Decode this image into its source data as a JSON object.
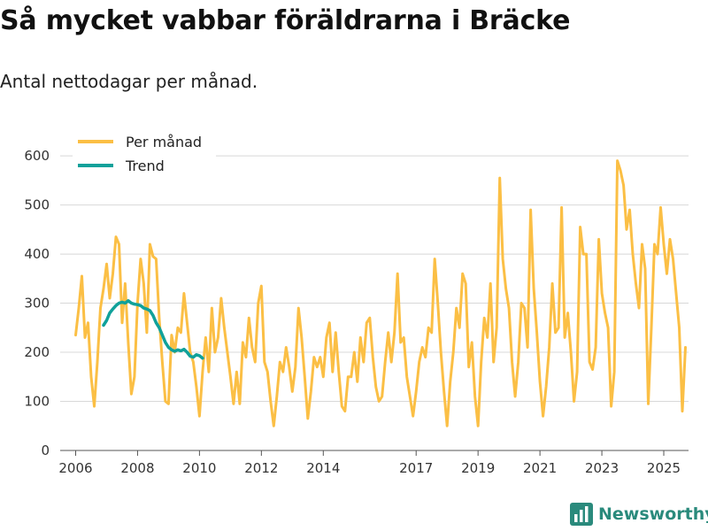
{
  "header": {
    "title": "Så mycket vabbar föräldrarna i Bräcke",
    "subtitle": "Antal nettodagar per månad."
  },
  "brand": {
    "name": "Newsworthy"
  },
  "colors": {
    "monthly": "#fbbf45",
    "trend": "#10a19a",
    "grid": "#d8d8d8",
    "brand": "#2a8a7c"
  },
  "chart_data": {
    "type": "line",
    "title": "Så mycket vabbar föräldrarna i Bräcke",
    "subtitle": "Antal nettodagar per månad.",
    "xlabel": "",
    "ylabel": "",
    "xlim": [
      2005.5,
      2025.8
    ],
    "ylim": [
      0,
      620
    ],
    "yticks": [
      0,
      100,
      200,
      300,
      400,
      500,
      600
    ],
    "xticks": [
      {
        "value": 2006,
        "label": "2006"
      },
      {
        "value": 2008,
        "label": "2008"
      },
      {
        "value": 2010,
        "label": "2010"
      },
      {
        "value": 2012,
        "label": "2012"
      },
      {
        "value": 2014,
        "label": "2014"
      },
      {
        "value": 2017,
        "label": "2017"
      },
      {
        "value": 2019,
        "label": "2019"
      },
      {
        "value": 2021,
        "label": "2021"
      },
      {
        "value": 2023,
        "label": "2023"
      },
      {
        "value": 2025,
        "label": "2025"
      }
    ],
    "grid": true,
    "legend_position": "top-left",
    "series": [
      {
        "name": "Per månad",
        "color": "#fbbf45",
        "segments": [
          [
            [
              2006.0,
              235
            ],
            [
              2006.1,
              290
            ],
            [
              2006.2,
              355
            ],
            [
              2006.3,
              230
            ],
            [
              2006.4,
              260
            ],
            [
              2006.5,
              150
            ],
            [
              2006.6,
              90
            ],
            [
              2006.7,
              180
            ],
            [
              2006.8,
              290
            ],
            [
              2006.9,
              330
            ],
            [
              2007.0,
              380
            ],
            [
              2007.1,
              310
            ],
            [
              2007.2,
              360
            ],
            [
              2007.3,
              435
            ],
            [
              2007.4,
              420
            ],
            [
              2007.5,
              260
            ],
            [
              2007.6,
              340
            ],
            [
              2007.7,
              220
            ],
            [
              2007.8,
              115
            ],
            [
              2007.9,
              150
            ],
            [
              2008.0,
              300
            ],
            [
              2008.1,
              390
            ],
            [
              2008.2,
              340
            ],
            [
              2008.3,
              240
            ],
            [
              2008.4,
              420
            ],
            [
              2008.5,
              395
            ],
            [
              2008.6,
              390
            ],
            [
              2008.7,
              270
            ],
            [
              2008.8,
              180
            ],
            [
              2008.9,
              100
            ],
            [
              2009.0,
              95
            ],
            [
              2009.1,
              235
            ],
            [
              2009.2,
              200
            ],
            [
              2009.3,
              250
            ],
            [
              2009.4,
              240
            ],
            [
              2009.5,
              320
            ],
            [
              2009.6,
              260
            ],
            [
              2009.7,
              200
            ],
            [
              2009.8,
              180
            ],
            [
              2009.9,
              130
            ],
            [
              2010.0,
              70
            ],
            [
              2010.1,
              160
            ],
            [
              2010.2,
              230
            ],
            [
              2010.3,
              160
            ],
            [
              2010.4,
              290
            ],
            [
              2010.5,
              200
            ],
            [
              2010.6,
              230
            ],
            [
              2010.7,
              310
            ],
            [
              2010.8,
              250
            ],
            [
              2010.9,
              200
            ]
          ],
          [
            [
              2010.9,
              200
            ],
            [
              2011.0,
              150
            ],
            [
              2011.1,
              95
            ],
            [
              2011.2,
              160
            ],
            [
              2011.3,
              95
            ],
            [
              2011.4,
              220
            ],
            [
              2011.5,
              190
            ],
            [
              2011.6,
              270
            ],
            [
              2011.7,
              210
            ],
            [
              2011.8,
              180
            ],
            [
              2011.9,
              300
            ],
            [
              2012.0,
              335
            ],
            [
              2012.1,
              180
            ],
            [
              2012.2,
              160
            ],
            [
              2012.3,
              100
            ],
            [
              2012.4,
              50
            ],
            [
              2012.5,
              110
            ],
            [
              2012.6,
              180
            ],
            [
              2012.7,
              160
            ],
            [
              2012.8,
              210
            ],
            [
              2012.9,
              170
            ],
            [
              2013.0,
              120
            ],
            [
              2013.1,
              170
            ],
            [
              2013.2,
              290
            ],
            [
              2013.3,
              230
            ],
            [
              2013.4,
              150
            ],
            [
              2013.5,
              65
            ],
            [
              2013.6,
              120
            ],
            [
              2013.7,
              190
            ],
            [
              2013.8,
              170
            ],
            [
              2013.9,
              190
            ],
            [
              2014.0,
              150
            ],
            [
              2014.1,
              230
            ],
            [
              2014.2,
              260
            ],
            [
              2014.3,
              160
            ],
            [
              2014.4,
              240
            ],
            [
              2014.5,
              160
            ],
            [
              2014.6,
              90
            ],
            [
              2014.7,
              80
            ],
            [
              2014.8,
              150
            ],
            [
              2014.9,
              150
            ],
            [
              2015.0,
              200
            ],
            [
              2015.1,
              140
            ],
            [
              2015.2,
              230
            ],
            [
              2015.3,
              180
            ],
            [
              2015.4,
              260
            ],
            [
              2015.5,
              270
            ],
            [
              2015.6,
              190
            ],
            [
              2015.7,
              130
            ],
            [
              2015.8,
              100
            ],
            [
              2015.9,
              110
            ],
            [
              2016.0,
              180
            ],
            [
              2016.1,
              240
            ],
            [
              2016.2,
              180
            ],
            [
              2016.3,
              240
            ],
            [
              2016.4,
              360
            ],
            [
              2016.5,
              220
            ],
            [
              2016.6,
              230
            ],
            [
              2016.7,
              150
            ],
            [
              2016.8,
              110
            ],
            [
              2016.9,
              70
            ],
            [
              2017.0,
              120
            ],
            [
              2017.1,
              180
            ],
            [
              2017.2,
              210
            ],
            [
              2017.3,
              190
            ],
            [
              2017.4,
              250
            ],
            [
              2017.5,
              240
            ],
            [
              2017.6,
              390
            ],
            [
              2017.7,
              300
            ],
            [
              2017.8,
              200
            ],
            [
              2017.9,
              120
            ],
            [
              2018.0,
              50
            ],
            [
              2018.1,
              140
            ],
            [
              2018.2,
              200
            ],
            [
              2018.3,
              290
            ],
            [
              2018.4,
              250
            ],
            [
              2018.5,
              360
            ],
            [
              2018.6,
              340
            ],
            [
              2018.7,
              170
            ],
            [
              2018.8,
              220
            ],
            [
              2018.9,
              110
            ],
            [
              2019.0,
              50
            ],
            [
              2019.1,
              180
            ],
            [
              2019.2,
              270
            ],
            [
              2019.3,
              230
            ],
            [
              2019.4,
              340
            ],
            [
              2019.5,
              180
            ],
            [
              2019.6,
              250
            ],
            [
              2019.7,
              555
            ],
            [
              2019.8,
              390
            ],
            [
              2019.9,
              330
            ],
            [
              2020.0,
              290
            ],
            [
              2020.1,
              180
            ],
            [
              2020.2,
              110
            ],
            [
              2020.3,
              180
            ],
            [
              2020.4,
              300
            ],
            [
              2020.5,
              290
            ],
            [
              2020.6,
              210
            ],
            [
              2020.7,
              490
            ],
            [
              2020.8,
              330
            ],
            [
              2020.9,
              240
            ],
            [
              2021.0,
              140
            ],
            [
              2021.1,
              70
            ],
            [
              2021.2,
              130
            ],
            [
              2021.3,
              210
            ],
            [
              2021.4,
              340
            ],
            [
              2021.5,
              240
            ],
            [
              2021.6,
              250
            ],
            [
              2021.7,
              495
            ],
            [
              2021.8,
              230
            ],
            [
              2021.9,
              280
            ],
            [
              2022.0,
              200
            ],
            [
              2022.1,
              100
            ],
            [
              2022.2,
              160
            ],
            [
              2022.3,
              455
            ],
            [
              2022.4,
              400
            ],
            [
              2022.5,
              400
            ],
            [
              2022.6,
              180
            ],
            [
              2022.7,
              165
            ],
            [
              2022.8,
              210
            ],
            [
              2022.9,
              430
            ],
            [
              2023.0,
              320
            ],
            [
              2023.1,
              280
            ],
            [
              2023.2,
              250
            ],
            [
              2023.3,
              90
            ],
            [
              2023.4,
              160
            ],
            [
              2023.5,
              590
            ],
            [
              2023.6,
              570
            ],
            [
              2023.7,
              540
            ],
            [
              2023.8,
              450
            ],
            [
              2023.9,
              490
            ],
            [
              2024.0,
              400
            ],
            [
              2024.1,
              340
            ],
            [
              2024.2,
              290
            ],
            [
              2024.3,
              420
            ],
            [
              2024.4,
              370
            ],
            [
              2024.5,
              95
            ],
            [
              2024.6,
              250
            ],
            [
              2024.7,
              420
            ],
            [
              2024.8,
              400
            ],
            [
              2024.9,
              495
            ],
            [
              2025.0,
              420
            ],
            [
              2025.1,
              360
            ],
            [
              2025.2,
              430
            ],
            [
              2025.3,
              390
            ],
            [
              2025.4,
              320
            ],
            [
              2025.5,
              250
            ],
            [
              2025.6,
              80
            ],
            [
              2025.7,
              210
            ]
          ]
        ]
      },
      {
        "name": "Trend",
        "color": "#10a19a",
        "segments": [
          [
            [
              2006.9,
              255
            ],
            [
              2007.0,
              265
            ],
            [
              2007.1,
              280
            ],
            [
              2007.2,
              288
            ],
            [
              2007.3,
              295
            ],
            [
              2007.4,
              300
            ],
            [
              2007.5,
              302
            ],
            [
              2007.6,
              300
            ],
            [
              2007.7,
              305
            ],
            [
              2007.8,
              300
            ],
            [
              2007.9,
              298
            ],
            [
              2008.0,
              297
            ],
            [
              2008.1,
              295
            ],
            [
              2008.2,
              290
            ],
            [
              2008.3,
              288
            ],
            [
              2008.4,
              285
            ],
            [
              2008.5,
              275
            ],
            [
              2008.6,
              260
            ],
            [
              2008.7,
              250
            ],
            [
              2008.8,
              235
            ],
            [
              2008.9,
              220
            ],
            [
              2009.0,
              210
            ],
            [
              2009.1,
              205
            ],
            [
              2009.2,
              202
            ],
            [
              2009.3,
              205
            ],
            [
              2009.4,
              203
            ],
            [
              2009.5,
              206
            ],
            [
              2009.6,
              200
            ],
            [
              2009.7,
              192
            ],
            [
              2009.8,
              190
            ],
            [
              2009.9,
              195
            ],
            [
              2010.0,
              193
            ],
            [
              2010.1,
              188
            ]
          ]
        ]
      }
    ]
  }
}
